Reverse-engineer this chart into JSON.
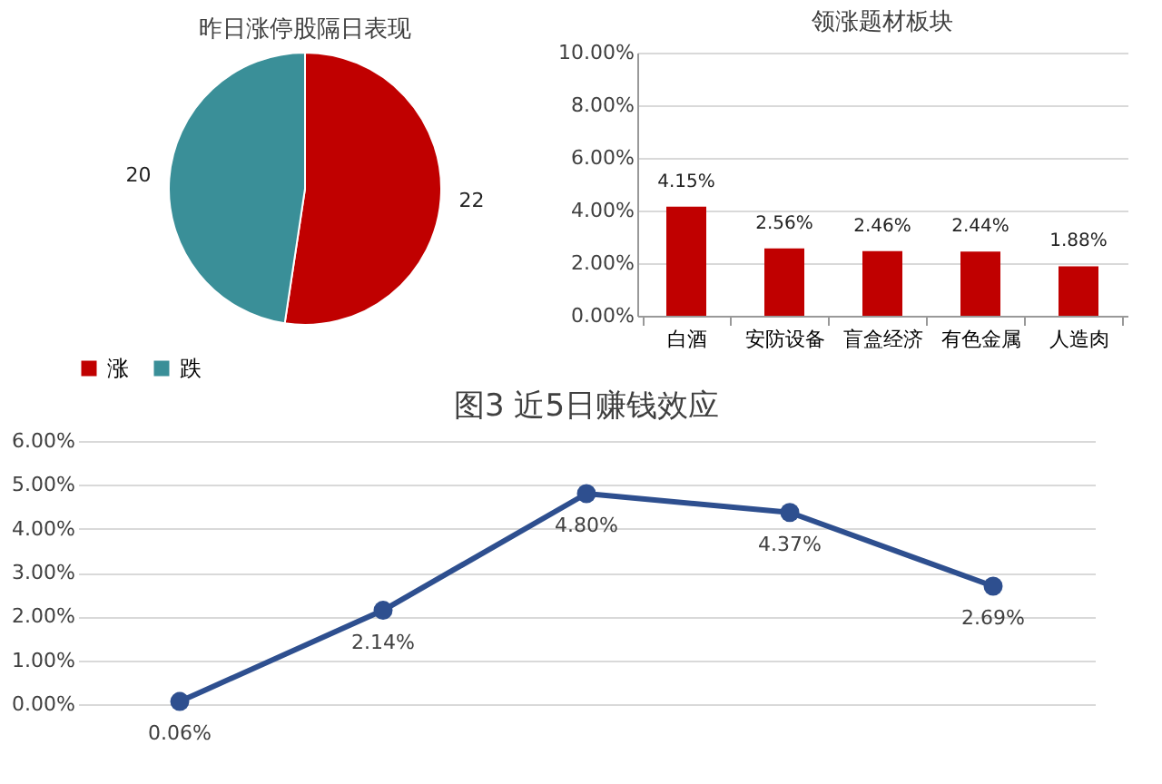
{
  "chart_data": [
    {
      "type": "pie",
      "title": "昨日涨停股隔日表现",
      "categories": [
        "涨",
        "跌"
      ],
      "values": [
        22,
        20
      ],
      "colors": [
        "#c00000",
        "#3a8f98"
      ],
      "data_labels": true,
      "legend": "bottom"
    },
    {
      "type": "bar",
      "title": "领涨题材板块",
      "categories": [
        "白酒",
        "安防设备",
        "盲盒经济",
        "有色金属",
        "人造肉"
      ],
      "values": [
        4.15,
        2.56,
        2.46,
        2.44,
        1.88
      ],
      "value_labels": [
        "4.15%",
        "2.56%",
        "2.46%",
        "2.44%",
        "1.88%"
      ],
      "color": "#c00000",
      "ylim": [
        0,
        10
      ],
      "yticks": [
        {
          "value": 0,
          "label": "0.00%"
        },
        {
          "value": 2,
          "label": "2.00%"
        },
        {
          "value": 4,
          "label": "4.00%"
        },
        {
          "value": 6,
          "label": "6.00%"
        },
        {
          "value": 8,
          "label": "8.00%"
        },
        {
          "value": 10,
          "label": "10.00%"
        }
      ],
      "grid": "y"
    },
    {
      "type": "line",
      "title": "图3 近5日赚钱效应",
      "categories": [
        null,
        null,
        null,
        null,
        null
      ],
      "values": [
        0.06,
        2.14,
        4.8,
        4.37,
        2.69
      ],
      "value_labels": [
        "0.06%",
        "2.14%",
        "4.80%",
        "4.37%",
        "2.69%"
      ],
      "color": "#2e4f8f",
      "marker": "circle",
      "ylim": [
        0,
        6
      ],
      "yticks": [
        {
          "value": 0,
          "label": "0.00%"
        },
        {
          "value": 1,
          "label": "1.00%"
        },
        {
          "value": 2,
          "label": "2.00%"
        },
        {
          "value": 3,
          "label": "3.00%"
        },
        {
          "value": 4,
          "label": "4.00%"
        },
        {
          "value": 5,
          "label": "5.00%"
        },
        {
          "value": 6,
          "label": "6.00%"
        }
      ],
      "grid": "y",
      "tick_labels": "y"
    }
  ]
}
